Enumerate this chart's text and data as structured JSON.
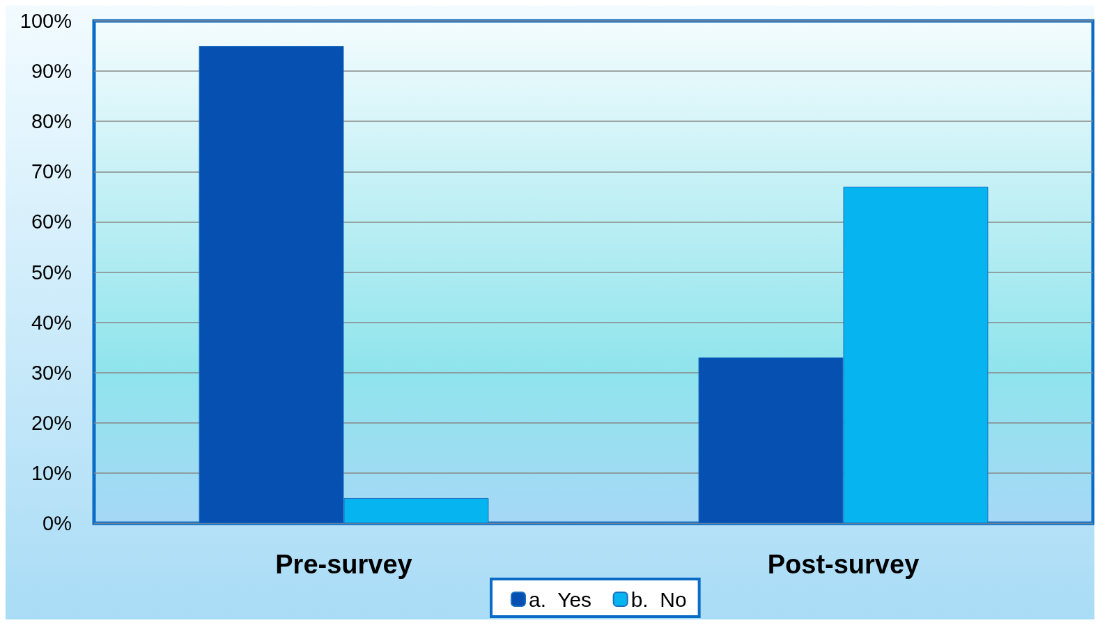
{
  "chart_data": {
    "type": "bar",
    "categories": [
      "Pre-survey",
      "Post-survey"
    ],
    "series": [
      {
        "name": "a.  Yes",
        "color": "#0550b0",
        "values": [
          95,
          33
        ]
      },
      {
        "name": "b.  No",
        "color": "#06b4f0",
        "values": [
          5,
          67
        ]
      }
    ],
    "ylim": [
      0,
      100
    ],
    "yticks": [
      {
        "value": 0,
        "label": "0%"
      },
      {
        "value": 10,
        "label": "10%"
      },
      {
        "value": 20,
        "label": "20%"
      },
      {
        "value": 30,
        "label": "30%"
      },
      {
        "value": 40,
        "label": "40%"
      },
      {
        "value": 50,
        "label": "50%"
      },
      {
        "value": 60,
        "label": "60%"
      },
      {
        "value": 70,
        "label": "70%"
      },
      {
        "value": 80,
        "label": "80%"
      },
      {
        "value": 90,
        "label": "90%"
      },
      {
        "value": 100,
        "label": "100%"
      }
    ],
    "grid": "y",
    "legend": "bottom"
  }
}
